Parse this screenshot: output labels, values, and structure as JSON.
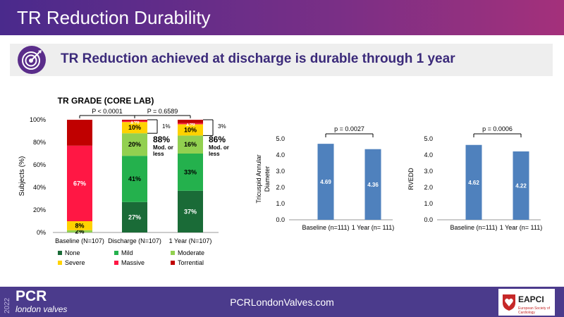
{
  "header": {
    "title": "TR Reduction Durability"
  },
  "subheader": {
    "text": "TR Reduction achieved at discharge is durable through 1 year",
    "icon": "target-icon"
  },
  "footer": {
    "year": "2022",
    "brand": "PCR",
    "brand_sub": "london valves",
    "url": "PCRLondonValves.com",
    "society": "EAPCI",
    "society_sub": "European Society of Cardiology"
  },
  "colors": {
    "header": "#5a2d8a",
    "subtitle": "#3b2a7a",
    "bar_blue": "#4f81bd",
    "None": "#1a6b37",
    "Mild": "#24b14d",
    "Moderate": "#92d050",
    "Severe": "#ffd200",
    "Massive": "#ff1744",
    "Torrential": "#c00000"
  },
  "chart_data": [
    {
      "type": "bar",
      "stacked": true,
      "title": "TR GRADE (CORE LAB)",
      "ylabel": "Subjects (%)",
      "ylim": [
        0,
        100
      ],
      "yticks": [
        "0%",
        "20%",
        "40%",
        "60%",
        "80%",
        "100%"
      ],
      "categories": [
        "Baseline (N=107)",
        "Discharge (N=107)",
        "1 Year (N=107)"
      ],
      "series": [
        {
          "name": "None",
          "values": [
            0,
            27,
            37
          ],
          "labels": [
            "",
            "27%",
            "37%"
          ]
        },
        {
          "name": "Mild",
          "values": [
            0,
            41,
            33
          ],
          "labels": [
            "",
            "41%",
            "33%"
          ]
        },
        {
          "name": "Moderate",
          "values": [
            2,
            20,
            16
          ],
          "labels": [
            "2%",
            "20%",
            "16%"
          ]
        },
        {
          "name": "Severe",
          "values": [
            8,
            10,
            10
          ],
          "labels": [
            "8%",
            "10%",
            "10%"
          ]
        },
        {
          "name": "Massive",
          "values": [
            67,
            1,
            1
          ],
          "labels": [
            "67%",
            "1%",
            "1%"
          ]
        },
        {
          "name": "Torrential",
          "values": [
            23,
            1,
            3
          ],
          "labels": [
            "",
            "",
            ""
          ]
        }
      ],
      "pvalues": [
        {
          "from": 0,
          "to": 1,
          "text": "P < 0.0001"
        },
        {
          "from": 1,
          "to": 2,
          "text": "P = 0.6589"
        }
      ],
      "annotations": [
        {
          "bar": 1,
          "small": "1%",
          "big": "88%",
          "text": "Mod. or less"
        },
        {
          "bar": 2,
          "small": "3%",
          "big": "86%",
          "text": "Mod. or less"
        }
      ],
      "legend_position": "bottom"
    },
    {
      "type": "bar",
      "ylabel": "Tricuspid Annular Diameter",
      "ylim": [
        0,
        5
      ],
      "yticks": [
        "0.0",
        "1.0",
        "2.0",
        "3.0",
        "4.0",
        "5.0"
      ],
      "categories": [
        "Baseline (n=111)",
        "1 Year (n= 111)"
      ],
      "values": [
        4.69,
        4.36
      ],
      "labels": [
        "4.69",
        "4.36"
      ],
      "pvalue": "p = 0.0027"
    },
    {
      "type": "bar",
      "ylabel": "RVEDD",
      "ylim": [
        0,
        5
      ],
      "yticks": [
        "0.0",
        "1.0",
        "2.0",
        "3.0",
        "4.0",
        "5.0"
      ],
      "categories": [
        "Baseline (n=111)",
        "1 Year (n= 111)"
      ],
      "values": [
        4.62,
        4.22
      ],
      "labels": [
        "4.62",
        "4.22"
      ],
      "pvalue": "p = 0.0006"
    }
  ]
}
